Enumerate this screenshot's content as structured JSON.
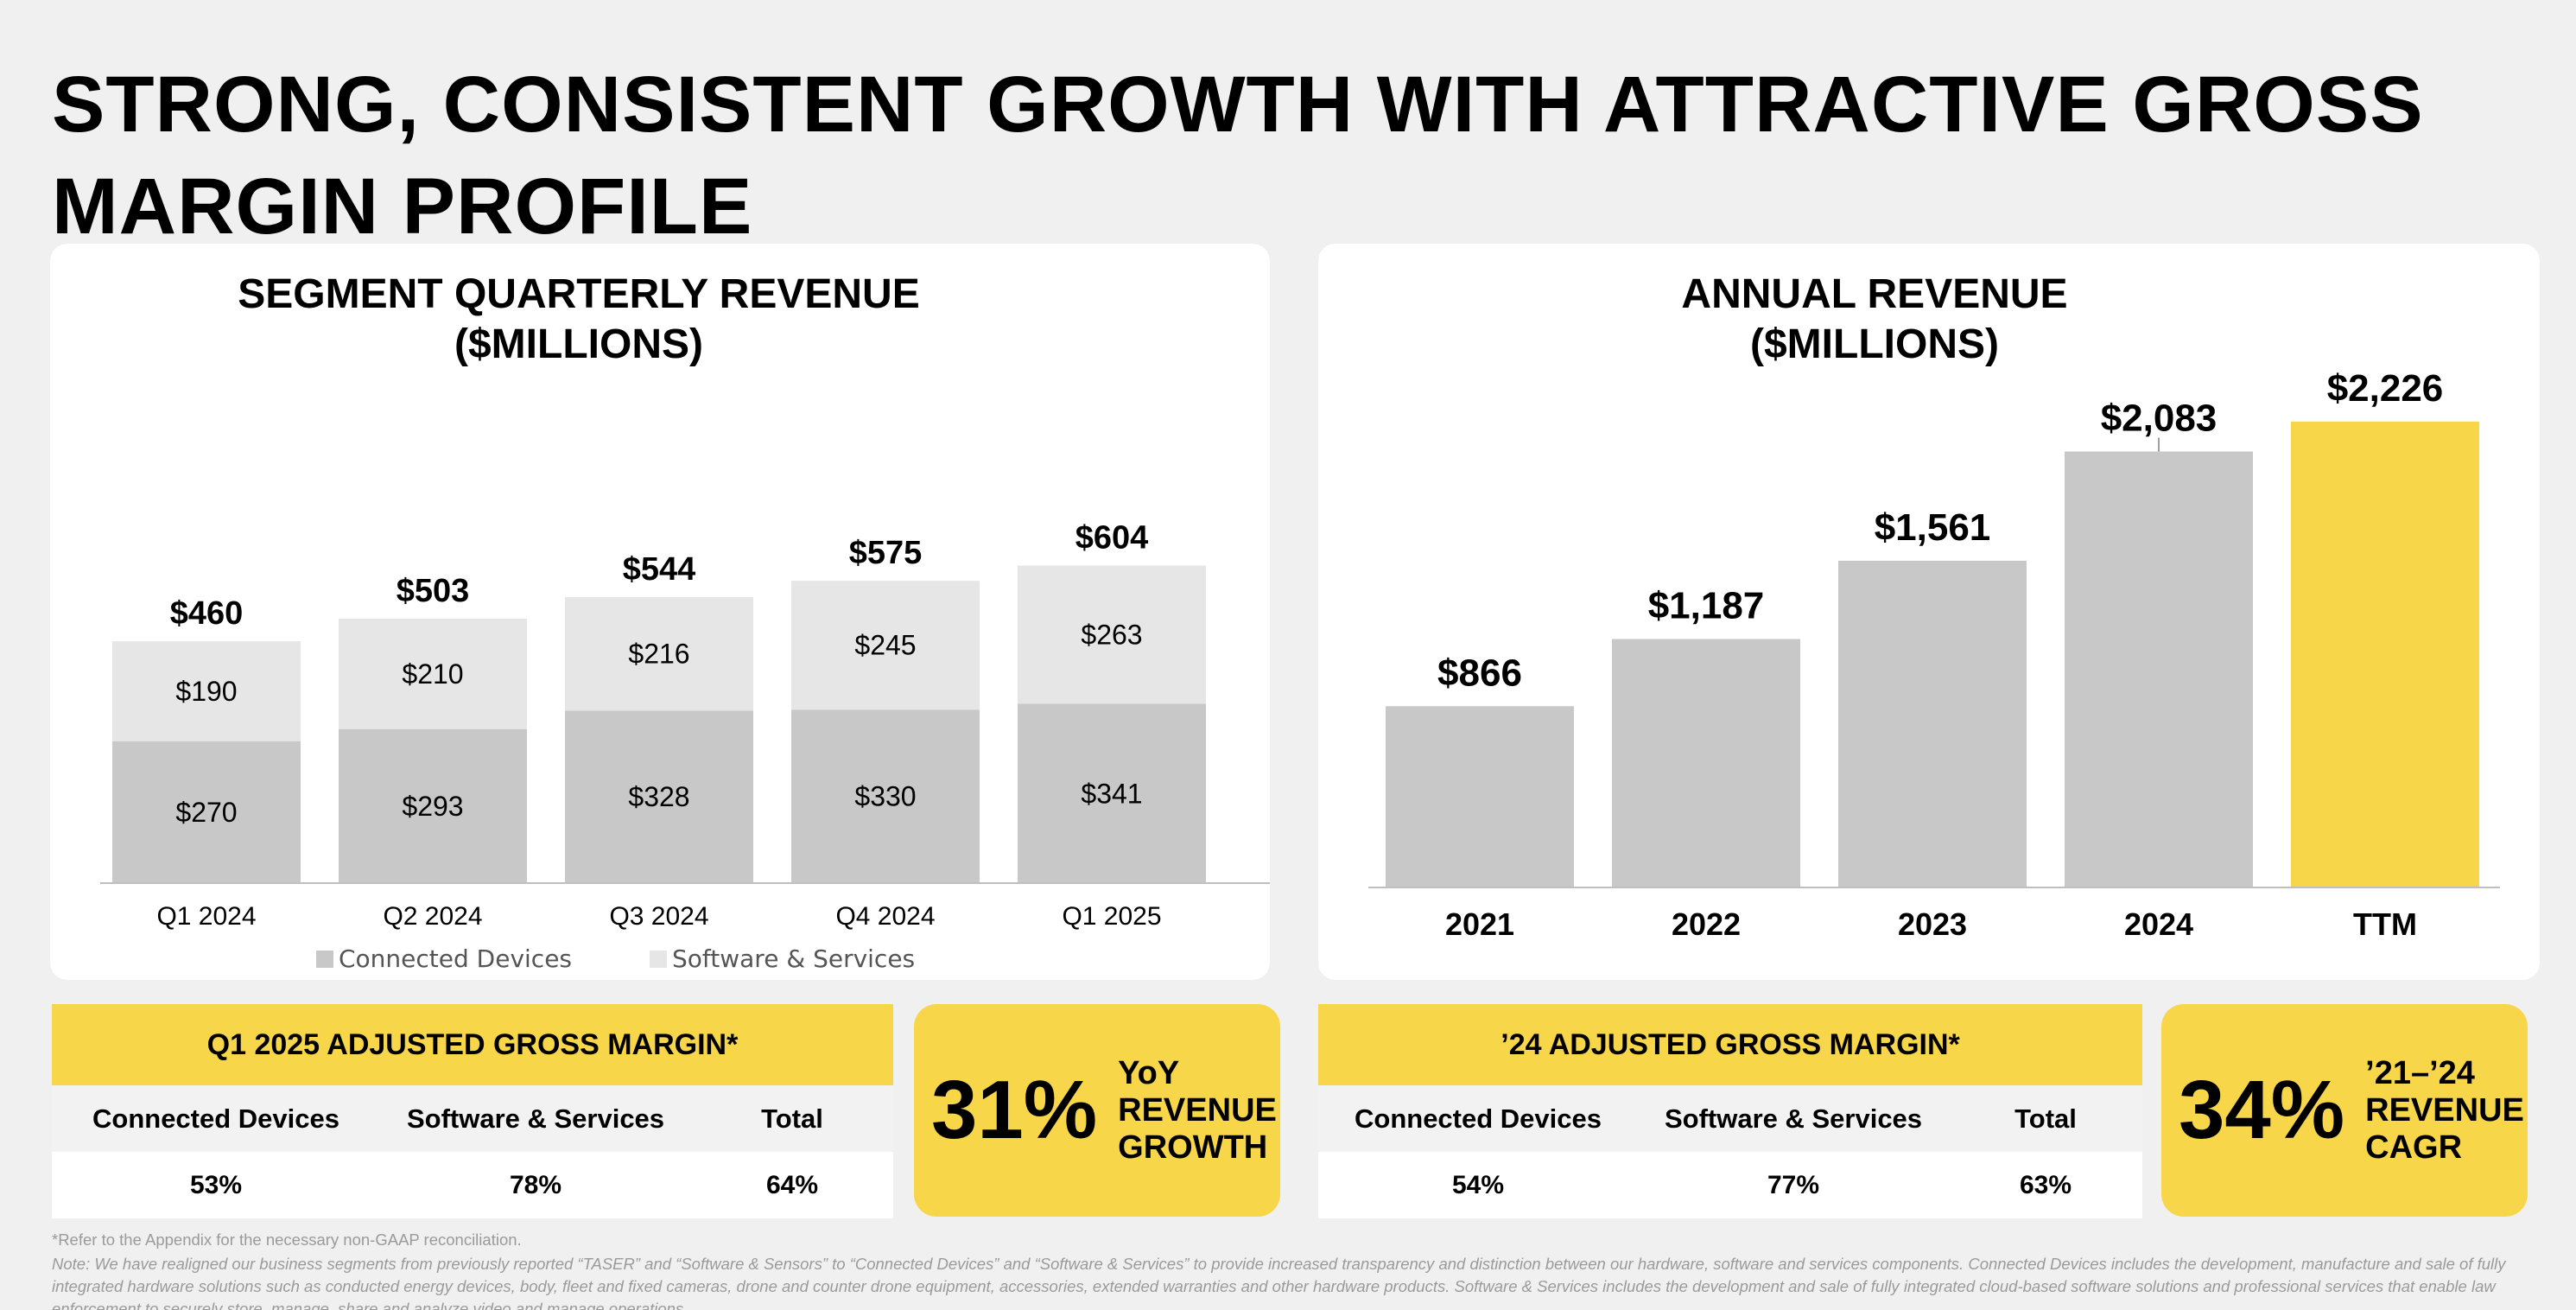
{
  "page": {
    "title": "STRONG, CONSISTENT GROWTH WITH ATTRACTIVE GROSS MARGIN PROFILE"
  },
  "colors": {
    "accent_yellow": "#f7d64a",
    "connected_devices": "#c8c8c8",
    "software_services": "#e6e6e6",
    "annual_bar": "#c8c8c8",
    "ttm_bar": "#f7d64a"
  },
  "chart_data": [
    {
      "type": "bar",
      "stacked": true,
      "title": "SEGMENT QUARTERLY REVENUE",
      "subtitle": "($MILLIONS)",
      "categories": [
        "Q1 2024",
        "Q2 2024",
        "Q3 2024",
        "Q4 2024",
        "Q1 2025"
      ],
      "series": [
        {
          "name": "Connected Devices",
          "values": [
            270,
            293,
            328,
            330,
            341
          ],
          "labels": [
            "$270",
            "$293",
            "$328",
            "$330",
            "$341"
          ]
        },
        {
          "name": "Software & Services",
          "values": [
            190,
            210,
            216,
            245,
            263
          ],
          "labels": [
            "$190",
            "$210",
            "$216",
            "$245",
            "$263"
          ]
        }
      ],
      "totals": [
        460,
        503,
        544,
        575,
        604
      ],
      "total_labels": [
        "$460",
        "$503",
        "$544",
        "$575",
        "$604"
      ],
      "legend_position": "bottom",
      "ylim": [
        0,
        800
      ]
    },
    {
      "type": "bar",
      "title": "ANNUAL REVENUE",
      "subtitle": "($MILLIONS)",
      "categories": [
        "2021",
        "2022",
        "2023",
        "2024",
        "TTM"
      ],
      "values": [
        866,
        1187,
        1561,
        2083,
        2226
      ],
      "labels": [
        "$866",
        "$1,187",
        "$1,561",
        "$2,083",
        "$2,226"
      ],
      "highlight": "TTM",
      "ylim": [
        0,
        2750
      ]
    }
  ],
  "gross_margin_q1": {
    "title": "Q1 2025 ADJUSTED GROSS MARGIN*",
    "columns": [
      "Connected Devices",
      "Software & Services",
      "Total"
    ],
    "values": [
      "53%",
      "78%",
      "64%"
    ]
  },
  "gross_margin_24": {
    "title": "’24 ADJUSTED GROSS MARGIN*",
    "columns": [
      "Connected Devices",
      "Software & Services",
      "Total"
    ],
    "values": [
      "54%",
      "77%",
      "63%"
    ]
  },
  "stat_yoy": {
    "value": "31%",
    "lines": [
      "YoY",
      "REVENUE",
      "GROWTH"
    ]
  },
  "stat_cagr": {
    "value": "34%",
    "lines": [
      "’21–’24",
      "REVENUE",
      "CAGR"
    ]
  },
  "footnotes": {
    "reconciliation": "*Refer to the Appendix for the necessary non-GAAP reconciliation.",
    "note": "Note: We have realigned our business segments from previously reported “TASER” and “Software & Sensors” to “Connected Devices” and “Software & Services” to provide increased transparency and distinction between our hardware, software and services components. Connected Devices includes the development, manufacture and sale of fully integrated hardware solutions such as conducted energy devices, body, fleet and fixed cameras, drone and counter drone equipment, accessories, extended warranties and other hardware products. Software & Services includes the development and sale of fully integrated cloud-based software solutions and professional services that enable law enforcement to securely store, manage, share and analyze video and manage operations."
  }
}
